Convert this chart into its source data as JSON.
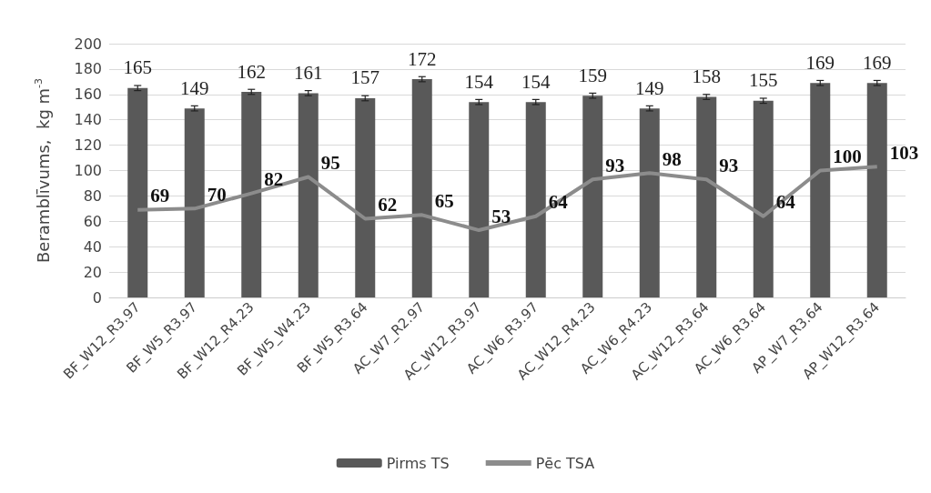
{
  "chart_data": {
    "type": "bar",
    "ylabel": "Beramblīvums,  kg m$^{-3}$",
    "categories": [
      "BF_W12_R3.97",
      "BF_W5_R3.97",
      "BF_W12_R4.23",
      "BF_W5_W4.23",
      "BF_W5_R3.64",
      "AC_W7_R2.97",
      "AC_W12_R3.97",
      "AC_W6_R3.97",
      "AC_W12_R4.23",
      "AC_W6_R4.23",
      "AC_W12_R3.64",
      "AC_W6_R3.64",
      "AP_W7_R3.64",
      "AP_W12_R3.64"
    ],
    "series": [
      {
        "name": "Pirms TS",
        "color": "#595959",
        "values": [
          165,
          149,
          162,
          161,
          157,
          172,
          154,
          154,
          159,
          149,
          158,
          155,
          169,
          169
        ],
        "errors": [
          2,
          2,
          2,
          2,
          2,
          2,
          2,
          2,
          2,
          2,
          2,
          2,
          2,
          2
        ]
      },
      {
        "name": "Pēc TSA",
        "type": "line",
        "color": "#8c8c8c",
        "values": [
          69,
          70,
          82,
          95,
          62,
          65,
          53,
          64,
          93,
          98,
          93,
          64,
          100,
          103
        ]
      }
    ],
    "ylim": [
      0,
      200
    ],
    "yticks": [
      0,
      20,
      40,
      60,
      80,
      100,
      120,
      140,
      160,
      180,
      200
    ],
    "grid": "y",
    "legend": "bottom",
    "data_labels": true,
    "marker": "none"
  }
}
